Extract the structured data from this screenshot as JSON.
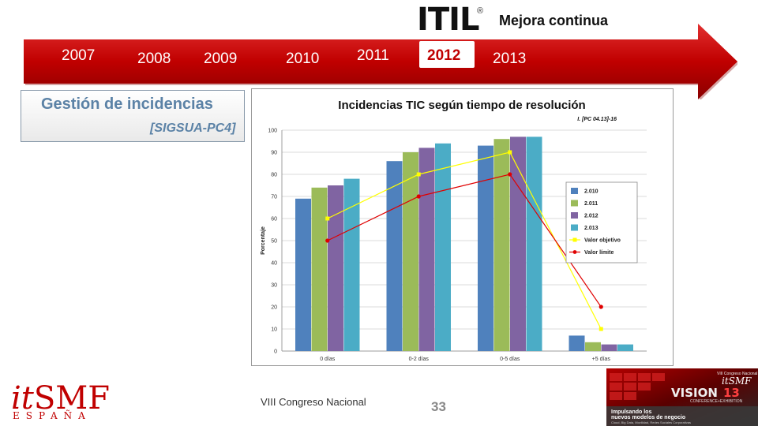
{
  "header": {
    "logo_text": "ITIL",
    "logo_mark": "®",
    "title": "Mejora continua"
  },
  "timeline": {
    "years": [
      "2007",
      "2008",
      "2009",
      "2010",
      "2011",
      "2012",
      "2013"
    ],
    "active_year": "2012",
    "accent_color": "#c00000"
  },
  "section": {
    "title": "Gestión de incidencias",
    "subtitle": "[SIGSUA-PC4]"
  },
  "chart_data": {
    "type": "bar",
    "title": "Incidencias TIC según tiempo de resolución",
    "subtitle": "I. [PC 04.13]-16",
    "ylabel": "Porcentaje",
    "xlabel": "",
    "ylim": [
      0,
      100
    ],
    "yticks": [
      0,
      10,
      20,
      30,
      40,
      50,
      60,
      70,
      80,
      90,
      100
    ],
    "grid": true,
    "legend_position": "right",
    "categories": [
      "0 días",
      "0-2 días",
      "0-5 días",
      "+5 días"
    ],
    "series": [
      {
        "name": "2.010",
        "type": "bar",
        "color": "#4f81bd",
        "values": [
          69,
          86,
          93,
          7
        ]
      },
      {
        "name": "2.011",
        "type": "bar",
        "color": "#9bbb59",
        "values": [
          74,
          90,
          96,
          4
        ]
      },
      {
        "name": "2.012",
        "type": "bar",
        "color": "#8064a2",
        "values": [
          75,
          92,
          97,
          3
        ]
      },
      {
        "name": "2.013",
        "type": "bar",
        "color": "#4bacc6",
        "values": [
          78,
          94,
          97,
          3
        ]
      },
      {
        "name": "Valor objetivo",
        "type": "line",
        "color": "#ffff00",
        "values": [
          60,
          80,
          90,
          10
        ]
      },
      {
        "name": "Valor límite",
        "type": "line",
        "color": "#e00000",
        "values": [
          50,
          70,
          80,
          20
        ]
      }
    ]
  },
  "footer": {
    "org_it": "it",
    "org_smf": "SMF",
    "org_country": "ESPAÑA",
    "event": "VIII Congreso Nacional",
    "page_number": "33"
  },
  "banner": {
    "top_text": "VIII Congreso Nacional",
    "brand": "itSMF",
    "vision": "VISION",
    "vision_num": "13",
    "subtitle": "CONFERENCE+EXHIBITION",
    "headline_1": "Impulsando los",
    "headline_2": "nuevos modelos de negocio",
    "tagline": "Cloud, Big Data, Movilidad, Redes Sociales Corporativas"
  }
}
